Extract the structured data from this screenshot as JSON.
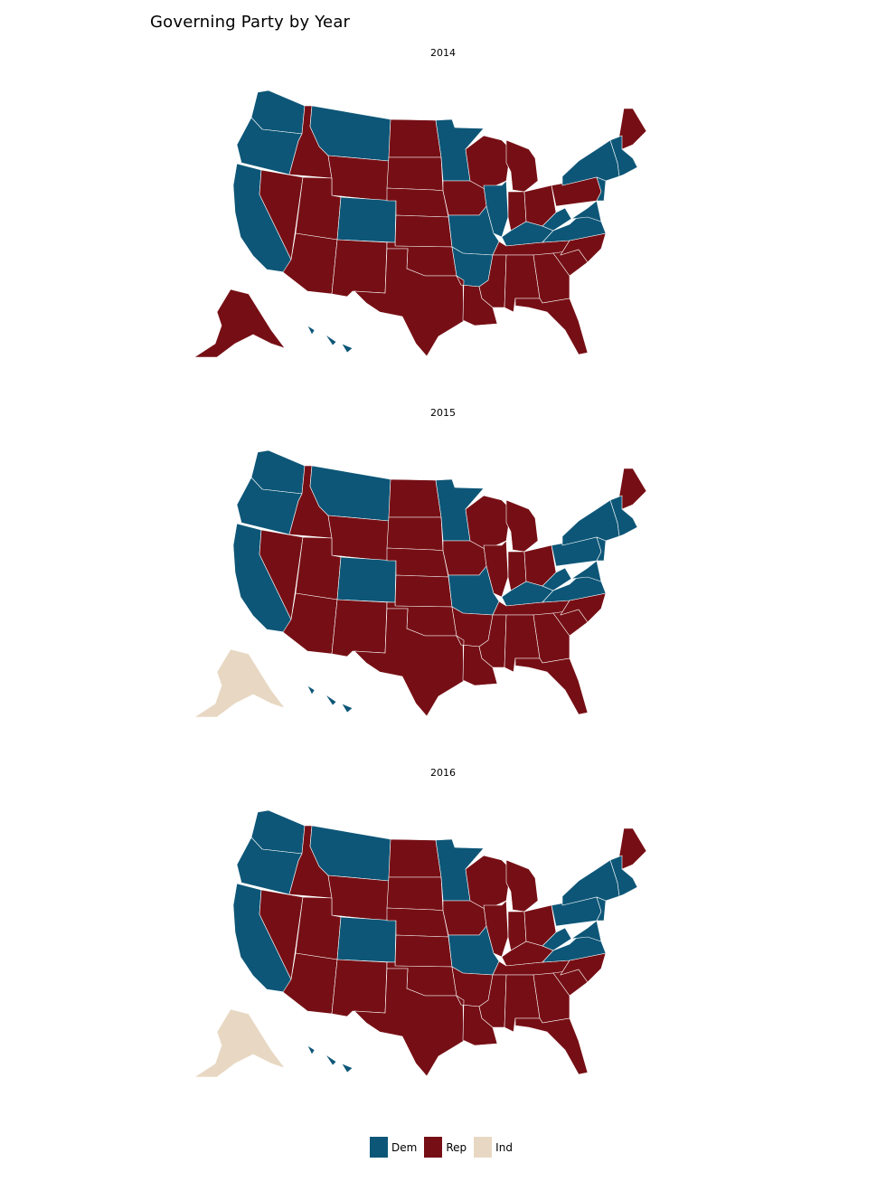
{
  "title": "Governing Party by Year",
  "colors": {
    "Dem": "#0d5677",
    "Rep": "#760f15",
    "Ind": "#e8d8c3"
  },
  "legend": [
    {
      "key": "Dem",
      "label": "Dem"
    },
    {
      "key": "Rep",
      "label": "Rep"
    },
    {
      "key": "Ind",
      "label": "Ind"
    }
  ],
  "panels": [
    {
      "year": "2014",
      "states": {
        "WA": "Dem",
        "OR": "Dem",
        "CA": "Dem",
        "ID": "Rep",
        "NV": "Rep",
        "MT": "Dem",
        "WY": "Rep",
        "UT": "Rep",
        "CO": "Dem",
        "AZ": "Rep",
        "NM": "Rep",
        "ND": "Rep",
        "SD": "Rep",
        "NE": "Rep",
        "KS": "Rep",
        "OK": "Rep",
        "TX": "Rep",
        "MN": "Dem",
        "IA": "Rep",
        "MO": "Dem",
        "AR": "Dem",
        "LA": "Rep",
        "WI": "Rep",
        "IL": "Dem",
        "MI": "Rep",
        "IN": "Rep",
        "OH": "Rep",
        "KY": "Dem",
        "TN": "Rep",
        "MS": "Rep",
        "AL": "Rep",
        "GA": "Rep",
        "FL": "Rep",
        "SC": "Rep",
        "NC": "Rep",
        "VA": "Dem",
        "WV": "Dem",
        "PA": "Rep",
        "NY": "Dem",
        "ME": "Rep",
        "NE_NEW": "Dem",
        "AK": "Rep",
        "HI": "Dem"
      }
    },
    {
      "year": "2015",
      "states": {
        "WA": "Dem",
        "OR": "Dem",
        "CA": "Dem",
        "ID": "Rep",
        "NV": "Rep",
        "MT": "Dem",
        "WY": "Rep",
        "UT": "Rep",
        "CO": "Dem",
        "AZ": "Rep",
        "NM": "Rep",
        "ND": "Rep",
        "SD": "Rep",
        "NE": "Rep",
        "KS": "Rep",
        "OK": "Rep",
        "TX": "Rep",
        "MN": "Dem",
        "IA": "Rep",
        "MO": "Dem",
        "AR": "Rep",
        "LA": "Rep",
        "WI": "Rep",
        "IL": "Rep",
        "MI": "Rep",
        "IN": "Rep",
        "OH": "Rep",
        "KY": "Dem",
        "TN": "Rep",
        "MS": "Rep",
        "AL": "Rep",
        "GA": "Rep",
        "FL": "Rep",
        "SC": "Rep",
        "NC": "Rep",
        "VA": "Dem",
        "WV": "Dem",
        "PA": "Dem",
        "NY": "Dem",
        "ME": "Rep",
        "NE_NEW": "Dem",
        "AK": "Ind",
        "HI": "Dem"
      }
    },
    {
      "year": "2016",
      "states": {
        "WA": "Dem",
        "OR": "Dem",
        "CA": "Dem",
        "ID": "Rep",
        "NV": "Rep",
        "MT": "Dem",
        "WY": "Rep",
        "UT": "Rep",
        "CO": "Dem",
        "AZ": "Rep",
        "NM": "Rep",
        "ND": "Rep",
        "SD": "Rep",
        "NE": "Rep",
        "KS": "Rep",
        "OK": "Rep",
        "TX": "Rep",
        "MN": "Dem",
        "IA": "Rep",
        "MO": "Dem",
        "AR": "Rep",
        "LA": "Rep",
        "WI": "Rep",
        "IL": "Rep",
        "MI": "Rep",
        "IN": "Rep",
        "OH": "Rep",
        "KY": "Rep",
        "TN": "Rep",
        "MS": "Rep",
        "AL": "Rep",
        "GA": "Rep",
        "FL": "Rep",
        "SC": "Rep",
        "NC": "Rep",
        "VA": "Dem",
        "WV": "Dem",
        "PA": "Dem",
        "NY": "Dem",
        "ME": "Rep",
        "NE_NEW": "Dem",
        "AK": "Ind",
        "HI": "Dem"
      }
    }
  ]
}
